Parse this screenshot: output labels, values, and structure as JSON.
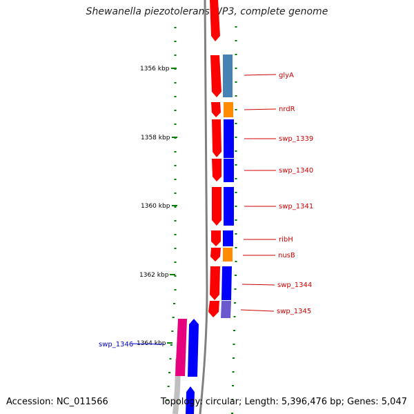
{
  "title": "Shewanella piezotolerans WP3, complete genome",
  "accession": "Accession: NC_011566",
  "summary": "Topology: circular; Length: 5,396,476 bp; Genes: 5,047",
  "ticks": [
    {
      "label": "1356 kbp"
    },
    {
      "label": "1358 kbp"
    },
    {
      "label": "1360 kbp"
    },
    {
      "label": "1362 kbp"
    },
    {
      "label": "1364 kbp"
    }
  ],
  "genes": [
    {
      "name": "glyA",
      "name_color": "#cc0000",
      "cog_color": "#4682b4"
    },
    {
      "name": "nrdR",
      "name_color": "#cc0000",
      "cog_color": "#ff8c00"
    },
    {
      "name": "swp_1339",
      "name_color": "#cc0000",
      "cog_color": "#0000ff"
    },
    {
      "name": "swp_1340",
      "name_color": "#cc0000",
      "cog_color": "#0000ff"
    },
    {
      "name": "swp_1341",
      "name_color": "#cc0000",
      "cog_color": "#0000ff"
    },
    {
      "name": "ribH",
      "name_color": "#cc0000",
      "cog_color": "#0000ff"
    },
    {
      "name": "nusB",
      "name_color": "#cc0000",
      "cog_color": "#ff8c00"
    },
    {
      "name": "swp_1344",
      "name_color": "#cc0000",
      "cog_color": "#0000ff"
    },
    {
      "name": "swp_1345",
      "name_color": "#cc0000",
      "cog_color": "#6a5acd"
    },
    {
      "name": "swp_1346",
      "name_color": "#0000cc",
      "cog_color": "#0000ff"
    }
  ],
  "colors": {
    "forward_strand": "#ff0000",
    "reverse_strand": "#e6007e",
    "backbone": "#808080",
    "tick": "#008000"
  }
}
